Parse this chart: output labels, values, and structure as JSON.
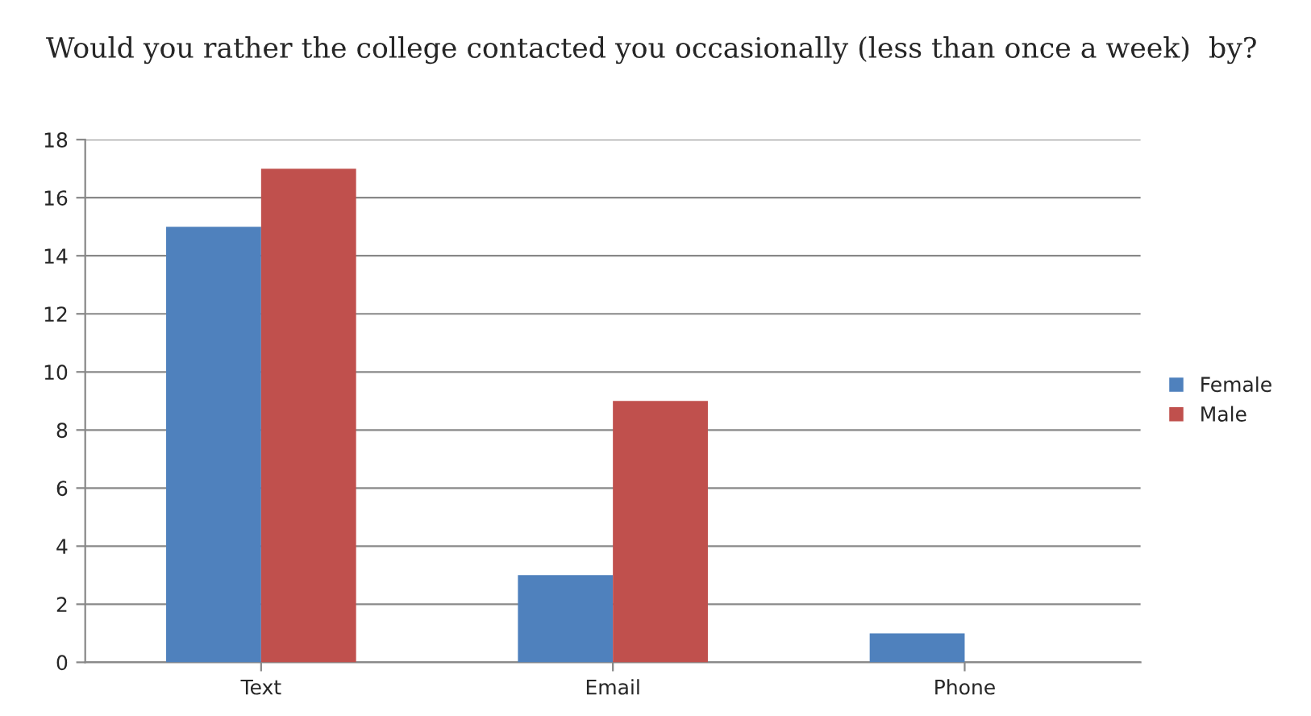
{
  "chart_data": {
    "type": "bar",
    "title": "Would you rather the college contacted you occasionally (less than once a week)  by?",
    "categories": [
      "Text",
      "Email",
      "Phone"
    ],
    "series": [
      {
        "name": "Female",
        "color": "#4f81bd",
        "values": [
          15,
          3,
          1
        ]
      },
      {
        "name": "Male",
        "color": "#c0504d",
        "values": [
          17,
          9,
          null
        ]
      }
    ],
    "ylim": [
      0,
      18
    ],
    "yticks": [
      0,
      2,
      4,
      6,
      8,
      10,
      12,
      14,
      16,
      18
    ],
    "grid": "y",
    "legend": "right"
  }
}
